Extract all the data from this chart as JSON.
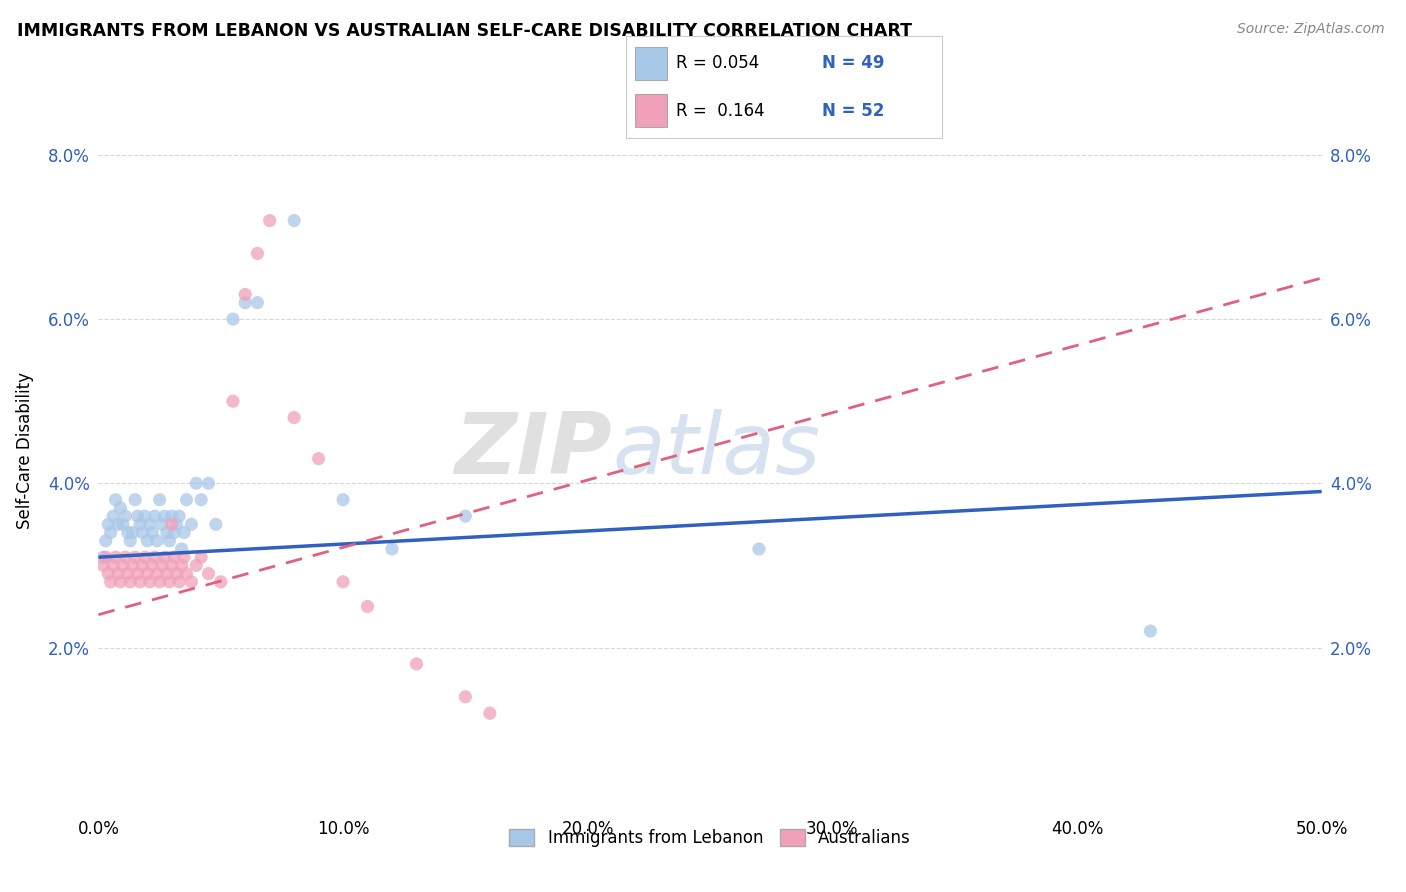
{
  "title": "IMMIGRANTS FROM LEBANON VS AUSTRALIAN SELF-CARE DISABILITY CORRELATION CHART",
  "source": "Source: ZipAtlas.com",
  "ylabel": "Self-Care Disability",
  "xmin": 0.0,
  "xmax": 0.5,
  "ymin": 0.0,
  "ymax": 0.088,
  "yticks": [
    0.02,
    0.04,
    0.06,
    0.08
  ],
  "ytick_labels": [
    "2.0%",
    "4.0%",
    "6.0%",
    "8.0%"
  ],
  "xticks": [
    0.0,
    0.1,
    0.2,
    0.3,
    0.4,
    0.5
  ],
  "xtick_labels": [
    "0.0%",
    "10.0%",
    "20.0%",
    "30.0%",
    "40.0%",
    "50.0%"
  ],
  "legend_labels": [
    "Immigrants from Lebanon",
    "Australians"
  ],
  "blue_color": "#A8C8E8",
  "pink_color": "#F0A0B8",
  "blue_line_color": "#3060C0",
  "pink_line_color": "#E06080",
  "watermark_zip": "ZIP",
  "watermark_atlas": "atlas",
  "blue_scatter_x": [
    0.002,
    0.003,
    0.004,
    0.005,
    0.006,
    0.007,
    0.008,
    0.009,
    0.01,
    0.011,
    0.012,
    0.013,
    0.014,
    0.015,
    0.016,
    0.017,
    0.018,
    0.019,
    0.02,
    0.021,
    0.022,
    0.023,
    0.024,
    0.025,
    0.026,
    0.027,
    0.028,
    0.029,
    0.03,
    0.031,
    0.032,
    0.033,
    0.034,
    0.035,
    0.036,
    0.038,
    0.04,
    0.042,
    0.045,
    0.048,
    0.055,
    0.06,
    0.065,
    0.08,
    0.1,
    0.12,
    0.15,
    0.43,
    0.27
  ],
  "blue_scatter_y": [
    0.031,
    0.033,
    0.035,
    0.034,
    0.036,
    0.038,
    0.035,
    0.037,
    0.035,
    0.036,
    0.034,
    0.033,
    0.034,
    0.038,
    0.036,
    0.035,
    0.034,
    0.036,
    0.033,
    0.035,
    0.034,
    0.036,
    0.033,
    0.038,
    0.035,
    0.036,
    0.034,
    0.033,
    0.036,
    0.034,
    0.035,
    0.036,
    0.032,
    0.034,
    0.038,
    0.035,
    0.04,
    0.038,
    0.04,
    0.035,
    0.06,
    0.062,
    0.062,
    0.072,
    0.038,
    0.032,
    0.036,
    0.022,
    0.032
  ],
  "pink_scatter_x": [
    0.002,
    0.003,
    0.004,
    0.005,
    0.006,
    0.007,
    0.008,
    0.009,
    0.01,
    0.011,
    0.012,
    0.013,
    0.014,
    0.015,
    0.016,
    0.017,
    0.018,
    0.019,
    0.02,
    0.021,
    0.022,
    0.023,
    0.024,
    0.025,
    0.026,
    0.027,
    0.028,
    0.029,
    0.03,
    0.031,
    0.032,
    0.033,
    0.034,
    0.035,
    0.036,
    0.038,
    0.04,
    0.042,
    0.045,
    0.05,
    0.055,
    0.06,
    0.065,
    0.07,
    0.08,
    0.09,
    0.1,
    0.11,
    0.13,
    0.15,
    0.16,
    0.03
  ],
  "pink_scatter_y": [
    0.03,
    0.031,
    0.029,
    0.028,
    0.03,
    0.031,
    0.029,
    0.028,
    0.03,
    0.031,
    0.029,
    0.028,
    0.03,
    0.031,
    0.029,
    0.028,
    0.03,
    0.031,
    0.029,
    0.028,
    0.03,
    0.031,
    0.029,
    0.028,
    0.03,
    0.031,
    0.029,
    0.028,
    0.03,
    0.031,
    0.029,
    0.028,
    0.03,
    0.031,
    0.029,
    0.028,
    0.03,
    0.031,
    0.029,
    0.028,
    0.05,
    0.063,
    0.068,
    0.072,
    0.048,
    0.043,
    0.028,
    0.025,
    0.018,
    0.014,
    0.012,
    0.035
  ],
  "blue_line_x0": 0.0,
  "blue_line_y0": 0.031,
  "blue_line_x1": 0.5,
  "blue_line_y1": 0.039,
  "pink_line_x0": 0.0,
  "pink_line_y0": 0.024,
  "pink_line_x1": 0.5,
  "pink_line_y1": 0.065
}
